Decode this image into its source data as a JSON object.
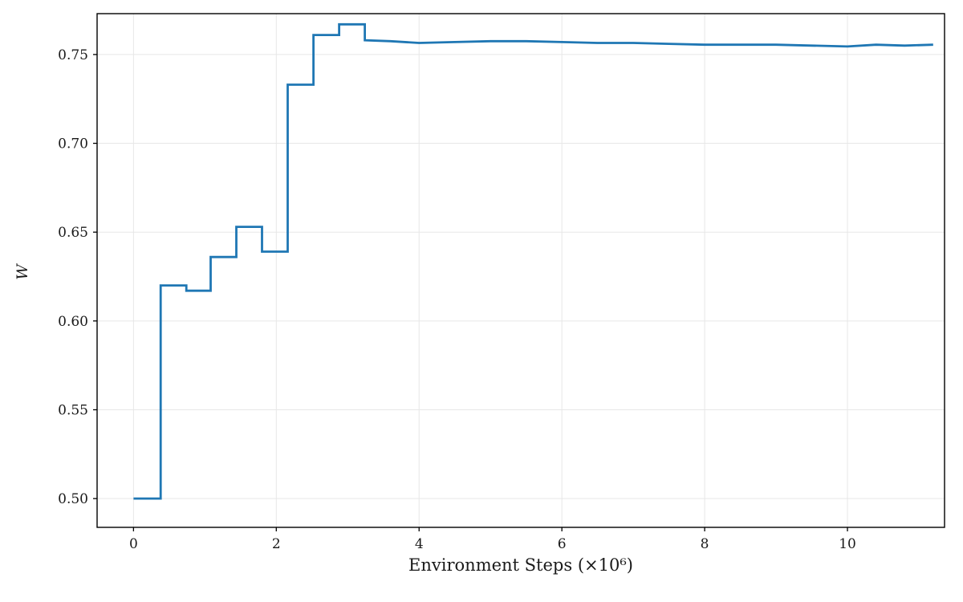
{
  "figure": {
    "background": "#ffffff",
    "text_color": "#1a1a1a"
  },
  "chart_data": {
    "type": "line",
    "title": "",
    "xlabel": "Environment Steps (×10⁶)",
    "ylabel": "W",
    "xlim": [
      -0.51,
      11.36
    ],
    "ylim": [
      0.4838,
      0.773
    ],
    "xticks": [
      0,
      2,
      4,
      6,
      8,
      10
    ],
    "xtick_labels": [
      "0",
      "2",
      "4",
      "6",
      "8",
      "10"
    ],
    "yticks": [
      0.5,
      0.55,
      0.6,
      0.65,
      0.7,
      0.75
    ],
    "ytick_labels": [
      "0.50",
      "0.55",
      "0.60",
      "0.65",
      "0.70",
      "0.75"
    ],
    "grid": true,
    "grid_color": "#e7e7e7",
    "spine_color": "#000000",
    "legend": "none",
    "series": [
      {
        "name": "W",
        "color": "#1f77b4",
        "line_width": 2.8,
        "points": [
          [
            0.0,
            0.5
          ],
          [
            0.38,
            0.5
          ],
          [
            0.38,
            0.62
          ],
          [
            0.74,
            0.62
          ],
          [
            0.74,
            0.617
          ],
          [
            1.08,
            0.617
          ],
          [
            1.08,
            0.636
          ],
          [
            1.44,
            0.636
          ],
          [
            1.44,
            0.653
          ],
          [
            1.8,
            0.653
          ],
          [
            1.8,
            0.639
          ],
          [
            2.16,
            0.639
          ],
          [
            2.16,
            0.733
          ],
          [
            2.52,
            0.733
          ],
          [
            2.52,
            0.761
          ],
          [
            2.88,
            0.761
          ],
          [
            2.88,
            0.767
          ],
          [
            3.24,
            0.767
          ],
          [
            3.24,
            0.758
          ],
          [
            3.6,
            0.7575
          ],
          [
            4.0,
            0.7565
          ],
          [
            4.5,
            0.757
          ],
          [
            5.0,
            0.7575
          ],
          [
            5.5,
            0.7575
          ],
          [
            6.0,
            0.757
          ],
          [
            6.5,
            0.7565
          ],
          [
            7.0,
            0.7565
          ],
          [
            7.5,
            0.756
          ],
          [
            8.0,
            0.7555
          ],
          [
            8.5,
            0.7555
          ],
          [
            9.0,
            0.7555
          ],
          [
            9.5,
            0.755
          ],
          [
            10.0,
            0.7545
          ],
          [
            10.4,
            0.7555
          ],
          [
            10.8,
            0.755
          ],
          [
            11.2,
            0.7555
          ]
        ]
      }
    ]
  }
}
